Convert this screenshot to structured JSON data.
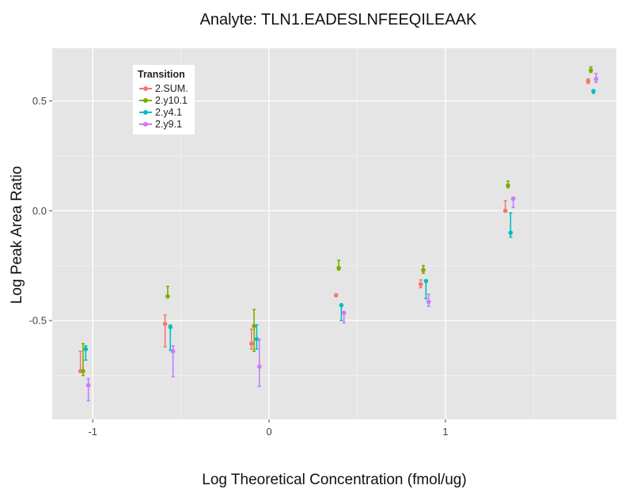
{
  "chart_data": {
    "type": "scatter",
    "title": "Analyte: TLN1.EADESLNFEEQILEAAK",
    "xlabel": "Log Theoretical Concentration (fmol/ug)",
    "ylabel": "Log Peak Area Ratio",
    "xlim": [
      -1.23,
      1.97
    ],
    "ylim": [
      -0.95,
      0.74
    ],
    "x_ticks": [
      -1,
      0,
      1
    ],
    "x_tick_labels": [
      "-1",
      "0",
      "1"
    ],
    "y_ticks": [
      -0.5,
      0.0,
      0.5
    ],
    "y_tick_labels": [
      "-0.5",
      "0.0",
      "0.5"
    ],
    "grid": true,
    "legend": {
      "title": "Transition",
      "position": "top-left"
    },
    "colors": {
      "2.SUM.": "#F8766D",
      "2.y10.1": "#7CAE00",
      "2.y4.1": "#00BFC4",
      "2.y9.1": "#C77CFF",
      "panel": "#E5E5E5",
      "grid": "#FFFFFF"
    },
    "series": [
      {
        "name": "2.SUM.",
        "points": [
          {
            "x": -1.07,
            "y": -0.73,
            "lo": -0.73,
            "hi": -0.64
          },
          {
            "x": -0.59,
            "y": -0.515,
            "lo": -0.62,
            "hi": -0.475
          },
          {
            "x": -0.1,
            "y": -0.605,
            "lo": -0.63,
            "hi": -0.54
          },
          {
            "x": 0.38,
            "y": -0.385,
            "lo": -0.385,
            "hi": -0.385
          },
          {
            "x": 0.86,
            "y": -0.335,
            "lo": -0.35,
            "hi": -0.315
          },
          {
            "x": 1.34,
            "y": 0.0,
            "lo": 0.0,
            "hi": 0.045
          },
          {
            "x": 1.81,
            "y": 0.59,
            "lo": 0.58,
            "hi": 0.6
          }
        ]
      },
      {
        "name": "2.y10.1",
        "points": [
          {
            "x": -1.055,
            "y": -0.73,
            "lo": -0.75,
            "hi": -0.605
          },
          {
            "x": -0.575,
            "y": -0.39,
            "lo": -0.39,
            "hi": -0.345
          },
          {
            "x": -0.085,
            "y": -0.525,
            "lo": -0.64,
            "hi": -0.45
          },
          {
            "x": 0.395,
            "y": -0.26,
            "lo": -0.27,
            "hi": -0.225
          },
          {
            "x": 0.875,
            "y": -0.27,
            "lo": -0.285,
            "hi": -0.25
          },
          {
            "x": 1.355,
            "y": 0.115,
            "lo": 0.105,
            "hi": 0.135
          },
          {
            "x": 1.825,
            "y": 0.64,
            "lo": 0.63,
            "hi": 0.655
          }
        ]
      },
      {
        "name": "2.y4.1",
        "points": [
          {
            "x": -1.04,
            "y": -0.63,
            "lo": -0.68,
            "hi": -0.615
          },
          {
            "x": -0.56,
            "y": -0.53,
            "lo": -0.635,
            "hi": -0.52
          },
          {
            "x": -0.07,
            "y": -0.585,
            "lo": -0.63,
            "hi": -0.52
          },
          {
            "x": 0.41,
            "y": -0.43,
            "lo": -0.5,
            "hi": -0.43
          },
          {
            "x": 0.89,
            "y": -0.32,
            "lo": -0.4,
            "hi": -0.32
          },
          {
            "x": 1.37,
            "y": -0.1,
            "lo": -0.12,
            "hi": -0.01
          },
          {
            "x": 1.84,
            "y": 0.545,
            "lo": 0.535,
            "hi": 0.55
          }
        ]
      },
      {
        "name": "2.y9.1",
        "points": [
          {
            "x": -1.025,
            "y": -0.795,
            "lo": -0.865,
            "hi": -0.765
          },
          {
            "x": -0.545,
            "y": -0.64,
            "lo": -0.755,
            "hi": -0.615
          },
          {
            "x": -0.055,
            "y": -0.71,
            "lo": -0.8,
            "hi": -0.585
          },
          {
            "x": 0.425,
            "y": -0.465,
            "lo": -0.51,
            "hi": -0.465
          },
          {
            "x": 0.905,
            "y": -0.415,
            "lo": -0.435,
            "hi": -0.38
          },
          {
            "x": 1.385,
            "y": 0.055,
            "lo": 0.015,
            "hi": 0.06
          },
          {
            "x": 1.855,
            "y": 0.6,
            "lo": 0.585,
            "hi": 0.625
          }
        ]
      }
    ]
  }
}
